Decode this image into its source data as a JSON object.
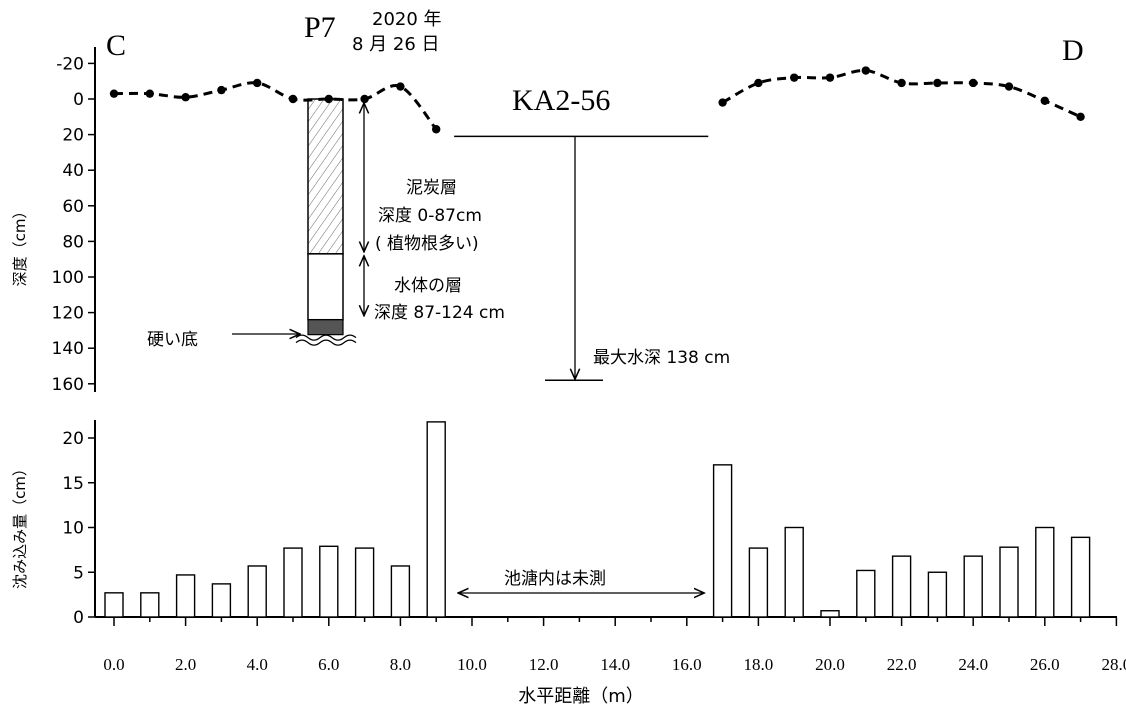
{
  "labels": {
    "left_end": "C",
    "right_end": "D",
    "pit_id": "P7",
    "date_line1": "2020 年",
    "date_line2": "8 月 26 日",
    "pond_id": "KA2-56",
    "peat_title": "泥炭層",
    "peat_depth": "深度 0-87cm",
    "peat_note": "( 植物根多い)",
    "water_title": "水体の層",
    "water_depth": "深度 87-124 cm",
    "hard_bottom": "硬い底",
    "max_depth": "最大水深 138 cm",
    "not_measured": "池溏内は未測"
  },
  "chart_data": [
    {
      "type": "line",
      "title": "",
      "ylabel": "深度（cm）",
      "xlabel": "",
      "ylim": [
        -25,
        170
      ],
      "y_inverted": true,
      "y_ticks": [
        -20,
        0,
        20,
        40,
        60,
        80,
        100,
        120,
        140,
        160
      ],
      "y_tick_labels": [
        "-20",
        "0",
        "20",
        "40",
        "60",
        "80",
        "100",
        "120",
        "140",
        "160"
      ],
      "series": [
        {
          "x": [
            0,
            1,
            2,
            3,
            4,
            5,
            6,
            7,
            8,
            9
          ],
          "y": [
            -3,
            -3,
            -1,
            -5,
            -9,
            0,
            0,
            0,
            -7,
            17
          ]
        },
        {
          "x": [
            17,
            18,
            19,
            20,
            21,
            22,
            23,
            24,
            25,
            26,
            27
          ],
          "y": [
            2,
            -9,
            -12,
            -12,
            -16,
            -9,
            -9,
            -9,
            -7,
            1,
            10
          ]
        }
      ],
      "profile": {
        "x": 6,
        "peat_layer_cm": [
          0,
          87
        ],
        "water_layer_cm": [
          87,
          124
        ],
        "hard_bottom_cm": [
          124,
          138
        ]
      },
      "water_surface_cm": 21,
      "max_water_depth_cm": 158,
      "water_surface_x": [
        9.5,
        16.6
      ]
    },
    {
      "type": "bar",
      "title": "",
      "xlabel": "水平距離（m）",
      "ylabel": "沈み込み量（cm）",
      "ylim": [
        0,
        22
      ],
      "y_ticks": [
        0,
        5,
        10,
        15,
        20
      ],
      "y_tick_labels": [
        "0",
        "5",
        "10",
        "15",
        "20"
      ],
      "xlim": [
        -0.2,
        28
      ],
      "x_ticks": [
        0,
        2,
        4,
        6,
        8,
        10,
        12,
        14,
        16,
        18,
        20,
        22,
        24,
        26,
        28
      ],
      "x_tick_labels": [
        "0.0",
        "2.0",
        "4.0",
        "6.0",
        "8.0",
        "10.0",
        "12.0",
        "14.0",
        "16.0",
        "18.0",
        "20.0",
        "22.0",
        "24.0",
        "26.0",
        "28.0"
      ],
      "x": [
        0,
        1,
        2,
        3,
        4,
        5,
        6,
        7,
        8,
        9,
        17,
        18,
        19,
        20,
        21,
        22,
        23,
        24,
        25,
        26,
        27
      ],
      "values": [
        2.7,
        2.7,
        4.7,
        3.7,
        5.7,
        7.7,
        7.9,
        7.7,
        5.7,
        21.8,
        17.0,
        7.7,
        10.0,
        0.7,
        5.2,
        6.8,
        5.0,
        6.8,
        7.8,
        10.0,
        8.9
      ],
      "unmeasured_range": [
        9.5,
        16.6
      ]
    }
  ]
}
